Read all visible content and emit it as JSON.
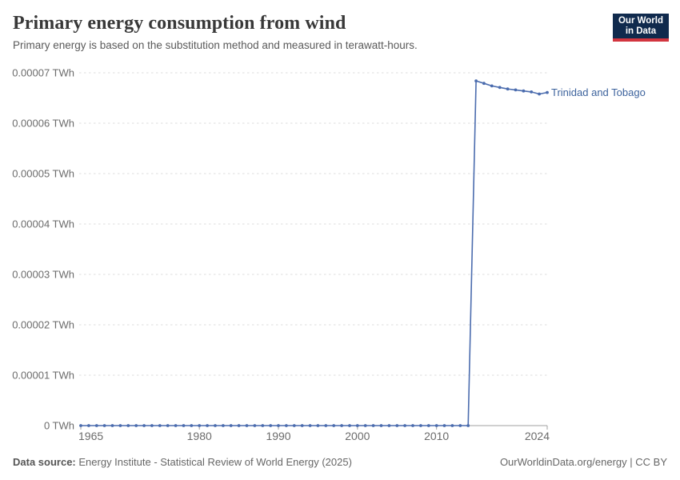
{
  "header": {
    "title": "Primary energy consumption from wind",
    "subtitle": "Primary energy is based on the substitution method and measured in terawatt-hours."
  },
  "logo": {
    "line1": "Our World",
    "line2": "in Data",
    "background": "#102a4d",
    "accent": "#d2353f"
  },
  "chart_data": {
    "type": "line",
    "title": "Primary energy consumption from wind",
    "unit": "TWh",
    "xlim": [
      1965,
      2024
    ],
    "ylim": [
      0,
      7e-05
    ],
    "grid": "horizontal-dashed",
    "legend_position": "end-of-line-label",
    "x_ticks": [
      1965,
      1980,
      1990,
      2000,
      2010,
      2024
    ],
    "y_ticks": [
      {
        "value": 0.0,
        "label": "0 TWh"
      },
      {
        "value": 1e-05,
        "label": "0.00001 TWh"
      },
      {
        "value": 2e-05,
        "label": "0.00002 TWh"
      },
      {
        "value": 3e-05,
        "label": "0.00003 TWh"
      },
      {
        "value": 4e-05,
        "label": "0.00004 TWh"
      },
      {
        "value": 5e-05,
        "label": "0.00005 TWh"
      },
      {
        "value": 6e-05,
        "label": "0.00006 TWh"
      },
      {
        "value": 7e-05,
        "label": "0.00007 TWh"
      }
    ],
    "series": [
      {
        "name": "Trinidad and Tobago",
        "color": "#4b6cae",
        "label_color": "#3d639d",
        "x": [
          1965,
          1966,
          1967,
          1968,
          1969,
          1970,
          1971,
          1972,
          1973,
          1974,
          1975,
          1976,
          1977,
          1978,
          1979,
          1980,
          1981,
          1982,
          1983,
          1984,
          1985,
          1986,
          1987,
          1988,
          1989,
          1990,
          1991,
          1992,
          1993,
          1994,
          1995,
          1996,
          1997,
          1998,
          1999,
          2000,
          2001,
          2002,
          2003,
          2004,
          2005,
          2006,
          2007,
          2008,
          2009,
          2010,
          2011,
          2012,
          2013,
          2014,
          2015,
          2016,
          2017,
          2018,
          2019,
          2020,
          2021,
          2022,
          2023,
          2024
        ],
        "values": [
          0,
          0,
          0,
          0,
          0,
          0,
          0,
          0,
          0,
          0,
          0,
          0,
          0,
          0,
          0,
          0,
          0,
          0,
          0,
          0,
          0,
          0,
          0,
          0,
          0,
          0,
          0,
          0,
          0,
          0,
          0,
          0,
          0,
          0,
          0,
          0,
          0,
          0,
          0,
          0,
          0,
          0,
          0,
          0,
          0,
          0,
          0,
          0,
          0,
          0,
          6.84e-05,
          6.79e-05,
          6.74e-05,
          6.71e-05,
          6.68e-05,
          6.66e-05,
          6.64e-05,
          6.62e-05,
          6.58e-05,
          6.61e-05
        ]
      }
    ]
  },
  "colors": {
    "line": "#4b6cae",
    "gridline": "#dcdcdc",
    "axis": "#a1a1a1",
    "tick_label": "#6b6b6b"
  },
  "footer": {
    "source_label": "Data source:",
    "source_text": "Energy Institute - Statistical Review of World Energy (2025)",
    "credit": "OurWorldinData.org/energy | CC BY"
  }
}
